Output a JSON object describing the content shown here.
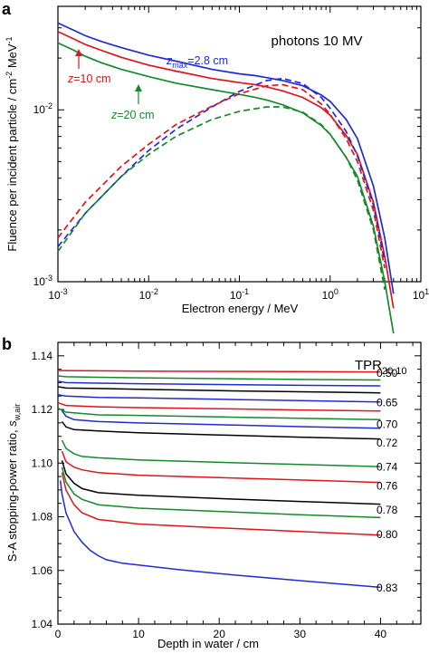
{
  "colors": {
    "blue": "#1f2bd6",
    "red": "#e0141b",
    "green": "#138a2b",
    "black": "#000000"
  },
  "panel_a": {
    "letter": "a",
    "title": "photons 10 MV",
    "annotations": [
      {
        "id": "zmax",
        "prefix": "z",
        "sub": "max",
        "suffix": "=2.8 cm",
        "color": "blue"
      },
      {
        "id": "z10",
        "prefix": "z",
        "sub": "",
        "suffix": "=10 cm",
        "color": "red"
      },
      {
        "id": "z20",
        "prefix": "z",
        "sub": "",
        "suffix": "=20 cm",
        "color": "green"
      }
    ]
  },
  "panel_b": {
    "letter": "b",
    "legend_title_main": "TPR",
    "legend_title_sub": "20,10"
  },
  "chart_data": [
    {
      "type": "line",
      "title": "photons 10 MV",
      "xlabel": "Electron energy / MeV",
      "ylabel_main": "Fluence per incident particle / cm",
      "ylabel_sup1": "-2",
      "ylabel_mid": " MeV",
      "ylabel_sup2": "-1",
      "xscale": "log",
      "yscale": "log",
      "xlim": [
        0.001,
        10
      ],
      "ylim": [
        0.001,
        0.04
      ],
      "x_ticks": [
        {
          "v": 0.001,
          "base": "10",
          "exp": "-3"
        },
        {
          "v": 0.01,
          "base": "10",
          "exp": "-2"
        },
        {
          "v": 0.1,
          "base": "10",
          "exp": "-1"
        },
        {
          "v": 1,
          "base": "10",
          "exp": "0"
        },
        {
          "v": 10,
          "base": "10",
          "exp": "1"
        }
      ],
      "y_ticks": [
        {
          "v": 0.001,
          "base": "10",
          "exp": "-3"
        },
        {
          "v": 0.01,
          "base": "10",
          "exp": "-2"
        }
      ],
      "series": [
        {
          "color": "blue",
          "dash": false,
          "x": [
            0.001,
            0.0015,
            0.002,
            0.003,
            0.005,
            0.01,
            0.02,
            0.05,
            0.1,
            0.15,
            0.2,
            0.3,
            0.5,
            0.8,
            1,
            1.5,
            2,
            3,
            4,
            5
          ],
          "y": [
            0.032,
            0.029,
            0.027,
            0.025,
            0.023,
            0.0208,
            0.0192,
            0.0172,
            0.0162,
            0.0158,
            0.0154,
            0.0148,
            0.0138,
            0.0122,
            0.0112,
            0.0088,
            0.0068,
            0.0036,
            0.0018,
            0.00085
          ]
        },
        {
          "color": "red",
          "dash": false,
          "x": [
            0.001,
            0.0015,
            0.002,
            0.003,
            0.005,
            0.01,
            0.02,
            0.05,
            0.1,
            0.15,
            0.2,
            0.3,
            0.5,
            0.8,
            1,
            1.5,
            2,
            3,
            4,
            5
          ],
          "y": [
            0.0285,
            0.0258,
            0.024,
            0.0222,
            0.0202,
            0.0182,
            0.0168,
            0.0152,
            0.0144,
            0.014,
            0.0136,
            0.0129,
            0.0118,
            0.0103,
            0.0093,
            0.0071,
            0.0055,
            0.0029,
            0.0014,
            0.0007
          ]
        },
        {
          "color": "green",
          "dash": false,
          "x": [
            0.001,
            0.0015,
            0.002,
            0.003,
            0.005,
            0.01,
            0.02,
            0.05,
            0.1,
            0.15,
            0.2,
            0.3,
            0.5,
            0.8,
            1,
            1.5,
            2,
            3,
            4,
            5
          ],
          "y": [
            0.0245,
            0.0222,
            0.0205,
            0.0188,
            0.0172,
            0.0156,
            0.0143,
            0.0131,
            0.0123,
            0.0118,
            0.0114,
            0.0107,
            0.0096,
            0.0081,
            0.0072,
            0.0053,
            0.0041,
            0.0021,
            0.001,
            0.0005
          ]
        },
        {
          "color": "blue",
          "dash": true,
          "x": [
            0.001,
            0.002,
            0.005,
            0.01,
            0.02,
            0.05,
            0.1,
            0.2,
            0.3,
            0.5,
            0.8,
            1,
            1.5,
            2,
            3,
            4
          ],
          "y": [
            0.0016,
            0.0025,
            0.0041,
            0.0058,
            0.0077,
            0.0104,
            0.0128,
            0.0148,
            0.0152,
            0.0142,
            0.0118,
            0.0102,
            0.0075,
            0.0054,
            0.0028,
            0.0013
          ]
        },
        {
          "color": "red",
          "dash": true,
          "x": [
            0.001,
            0.002,
            0.005,
            0.01,
            0.02,
            0.05,
            0.1,
            0.2,
            0.3,
            0.5,
            0.8,
            1,
            1.5,
            2,
            3,
            4
          ],
          "y": [
            0.0018,
            0.0029,
            0.0047,
            0.0063,
            0.0082,
            0.0105,
            0.0124,
            0.0138,
            0.014,
            0.0131,
            0.0108,
            0.0094,
            0.0068,
            0.005,
            0.0026,
            0.0012
          ]
        },
        {
          "color": "green",
          "dash": true,
          "x": [
            0.001,
            0.002,
            0.005,
            0.01,
            0.02,
            0.05,
            0.1,
            0.2,
            0.3,
            0.5,
            0.8,
            1,
            1.5,
            2,
            3,
            4
          ],
          "y": [
            0.0015,
            0.0025,
            0.0041,
            0.0055,
            0.007,
            0.0088,
            0.0098,
            0.0104,
            0.0104,
            0.0097,
            0.0082,
            0.0072,
            0.0053,
            0.0039,
            0.002,
            0.0009
          ]
        }
      ]
    },
    {
      "type": "line",
      "xlabel": "Depth in water / cm",
      "ylabel_main": "S-A stopping-power ratio, ",
      "ylabel_sym": "s",
      "ylabel_sub": "w,air",
      "xlim": [
        0,
        45
      ],
      "ylim": [
        1.04,
        1.145
      ],
      "x_ticks": [
        "0",
        "10",
        "20",
        "30",
        "40"
      ],
      "y_ticks": [
        "1.04",
        "1.06",
        "1.08",
        "1.10",
        "1.12",
        "1.14"
      ],
      "series": [
        {
          "name": "0.50",
          "color": "red",
          "label_y": 1.1335,
          "x": [
            0,
            1,
            5,
            10,
            20,
            30,
            40
          ],
          "y": [
            1.1345,
            1.1345,
            1.1344,
            1.1343,
            1.1342,
            1.1341,
            1.134
          ]
        },
        {
          "name": "0.65",
          "color": "green",
          "label_y": 1.1225,
          "x": [
            0,
            1,
            5,
            10,
            20,
            30,
            40
          ],
          "y": [
            1.1325,
            1.1322,
            1.132,
            1.1318,
            1.1315,
            1.1312,
            1.131
          ]
        },
        {
          "name": "",
          "color": "blue",
          "x": [
            0,
            1,
            5,
            10,
            20,
            30,
            40
          ],
          "y": [
            1.1305,
            1.13,
            1.1298,
            1.1296,
            1.1293,
            1.129,
            1.1288
          ]
        },
        {
          "name": "",
          "color": "black",
          "x": [
            0,
            1,
            5,
            10,
            20,
            30,
            40
          ],
          "y": [
            1.1285,
            1.128,
            1.1278,
            1.1275,
            1.127,
            1.1266,
            1.1262
          ]
        },
        {
          "name": "",
          "color": "blue",
          "x": [
            0,
            1,
            5,
            10,
            20,
            30,
            40
          ],
          "y": [
            1.1255,
            1.125,
            1.1245,
            1.1243,
            1.1238,
            1.1233,
            1.1228
          ]
        },
        {
          "name": "",
          "color": "red",
          "x": [
            0,
            1,
            5,
            10,
            20,
            30,
            40
          ],
          "y": [
            1.1225,
            1.1215,
            1.121,
            1.1207,
            1.1203,
            1.1198,
            1.1194
          ]
        },
        {
          "name": "",
          "color": "green",
          "x": [
            0,
            1,
            5,
            10,
            20,
            30,
            40
          ],
          "y": [
            1.1205,
            1.119,
            1.118,
            1.1178,
            1.1172,
            1.1167,
            1.1162
          ]
        },
        {
          "name": "0.70",
          "color": "blue",
          "label_y": 1.1145,
          "x": [
            0.5,
            1,
            2,
            5,
            10,
            20,
            30,
            40
          ],
          "y": [
            1.1195,
            1.1175,
            1.1162,
            1.1155,
            1.115,
            1.1143,
            1.1136,
            1.113
          ]
        },
        {
          "name": "0.72",
          "color": "black",
          "label_y": 1.1075,
          "x": [
            0.5,
            1,
            2,
            5,
            10,
            20,
            30,
            40
          ],
          "y": [
            1.1155,
            1.1135,
            1.1125,
            1.112,
            1.1113,
            1.1105,
            1.1097,
            1.109
          ]
        },
        {
          "name": "0.74",
          "color": "green",
          "label_y": 1.0985,
          "x": [
            0.5,
            1,
            2,
            3,
            5,
            10,
            20,
            30,
            40
          ],
          "y": [
            1.1085,
            1.1055,
            1.1035,
            1.1025,
            1.102,
            1.1012,
            1.1003,
            1.0995,
            1.0987
          ]
        },
        {
          "name": "0.76",
          "color": "red",
          "label_y": 1.0915,
          "x": [
            0.5,
            1,
            2,
            3,
            5,
            10,
            20,
            30,
            40
          ],
          "y": [
            1.1045,
            1.1005,
            1.0985,
            1.0975,
            1.0965,
            1.0955,
            1.0946,
            1.0937,
            1.0928
          ]
        },
        {
          "name": "0.78",
          "color": "black",
          "label_y": 1.0825,
          "x": [
            0.5,
            1,
            2,
            3,
            5,
            10,
            20,
            30,
            40
          ],
          "y": [
            1.101,
            1.096,
            1.0925,
            1.0905,
            1.089,
            1.088,
            1.0868,
            1.0857,
            1.0847
          ]
        },
        {
          "name": "",
          "color": "green",
          "x": [
            0.5,
            1,
            2,
            3,
            5,
            10,
            20,
            30,
            40
          ],
          "y": [
            1.0985,
            1.093,
            1.0885,
            1.0865,
            1.0845,
            1.0832,
            1.082,
            1.0808,
            1.0797
          ]
        },
        {
          "name": "0.80",
          "color": "red",
          "label_y": 1.0735,
          "x": [
            0.5,
            1,
            2,
            3,
            5,
            10,
            20,
            30,
            40
          ],
          "y": [
            1.0965,
            1.09,
            1.0845,
            1.0815,
            1.079,
            1.0773,
            1.0759,
            1.0745,
            1.0732
          ]
        },
        {
          "name": "0.83",
          "color": "blue",
          "label_y": 1.0535,
          "x": [
            0.3,
            0.5,
            1,
            2,
            3,
            4,
            5,
            6,
            8,
            10,
            15,
            20,
            30,
            40
          ],
          "y": [
            1.0935,
            1.0885,
            1.0815,
            1.0745,
            1.0705,
            1.0675,
            1.0655,
            1.064,
            1.0627,
            1.062,
            1.0603,
            1.0588,
            1.0562,
            1.0537
          ]
        }
      ]
    }
  ]
}
